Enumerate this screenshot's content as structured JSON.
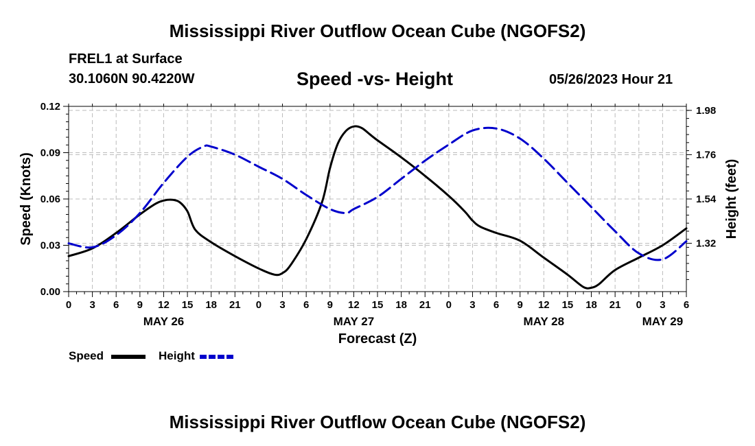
{
  "header": {
    "title": "Mississippi River Outflow Ocean Cube (NGOFS2)",
    "station": "FREL1 at Surface",
    "coords": "30.1060N  90.4220W",
    "timestamp": "05/26/2023 Hour 21"
  },
  "footer": {
    "title": "Mississippi River Outflow Ocean Cube (NGOFS2)"
  },
  "chart_data": {
    "type": "line",
    "title": "Speed -vs- Height",
    "xlabel": "Forecast (Z)",
    "ylabel": "Speed (Knots)",
    "y2label": "Height (feet)",
    "xlim": [
      0,
      78
    ],
    "ylim": [
      0,
      0.12
    ],
    "y2lim": [
      1.08,
      2.0
    ],
    "x_tick_step": 3,
    "y_ticks": [
      {
        "value": 0,
        "label": "0.00"
      },
      {
        "value": 0.03,
        "label": "0.03"
      },
      {
        "value": 0.06,
        "label": "0.06"
      },
      {
        "value": 0.09,
        "label": "0.09"
      },
      {
        "value": 0.12,
        "label": "0.12"
      }
    ],
    "y2_ticks": [
      {
        "value": 1.32,
        "label": "1.32"
      },
      {
        "value": 1.54,
        "label": "1.54"
      },
      {
        "value": 1.76,
        "label": "1.76"
      },
      {
        "value": 1.98,
        "label": "1.98"
      }
    ],
    "x_tick_labels": [
      "0",
      "3",
      "6",
      "9",
      "12",
      "15",
      "18",
      "21",
      "0",
      "3",
      "6",
      "9",
      "12",
      "15",
      "18",
      "21",
      "0",
      "3",
      "6",
      "9",
      "12",
      "15",
      "18",
      "21",
      "0",
      "3",
      "6"
    ],
    "day_labels": [
      {
        "label": "MAY 26",
        "hour": 12
      },
      {
        "label": "MAY 27",
        "hour": 36
      },
      {
        "label": "MAY 28",
        "hour": 60
      },
      {
        "label": "MAY 29",
        "hour": 75
      }
    ],
    "grid": true,
    "legend": {
      "position": "bottom-left",
      "entries": [
        {
          "label": "Speed",
          "color": "#000000",
          "style": "solid"
        },
        {
          "label": "Height",
          "color": "#0000cc",
          "style": "dashed"
        }
      ]
    },
    "series": [
      {
        "name": "Speed",
        "axis": "left",
        "color": "#000000",
        "style": "solid",
        "x": [
          0,
          3,
          6,
          9,
          11,
          12,
          13,
          14,
          15,
          16,
          18,
          21,
          24,
          26,
          27,
          28,
          30,
          32,
          33,
          34,
          35,
          36,
          37,
          38,
          39,
          42,
          45,
          48,
          50,
          51,
          52,
          54,
          57,
          60,
          63,
          65,
          66,
          67,
          69,
          72,
          75,
          78
        ],
        "values": [
          0.023,
          0.028,
          0.038,
          0.05,
          0.057,
          0.059,
          0.0595,
          0.058,
          0.052,
          0.04,
          0.032,
          0.023,
          0.015,
          0.011,
          0.012,
          0.017,
          0.034,
          0.058,
          0.08,
          0.096,
          0.104,
          0.107,
          0.106,
          0.102,
          0.098,
          0.087,
          0.075,
          0.062,
          0.052,
          0.046,
          0.042,
          0.038,
          0.033,
          0.022,
          0.011,
          0.003,
          0.0025,
          0.005,
          0.014,
          0.022,
          0.03,
          0.041
        ]
      },
      {
        "name": "Height",
        "axis": "right",
        "color": "#0000cc",
        "style": "dashed",
        "x": [
          0,
          3,
          6,
          9,
          12,
          15,
          17,
          18,
          21,
          24,
          27,
          30,
          33,
          35,
          36,
          39,
          42,
          45,
          48,
          51,
          54,
          57,
          60,
          63,
          66,
          69,
          72,
          75,
          78
        ],
        "values": [
          1.32,
          1.3,
          1.36,
          1.47,
          1.62,
          1.75,
          1.8,
          1.8,
          1.76,
          1.7,
          1.64,
          1.56,
          1.49,
          1.47,
          1.49,
          1.55,
          1.64,
          1.73,
          1.81,
          1.88,
          1.89,
          1.84,
          1.74,
          1.62,
          1.5,
          1.38,
          1.27,
          1.24,
          1.33
        ]
      }
    ]
  }
}
